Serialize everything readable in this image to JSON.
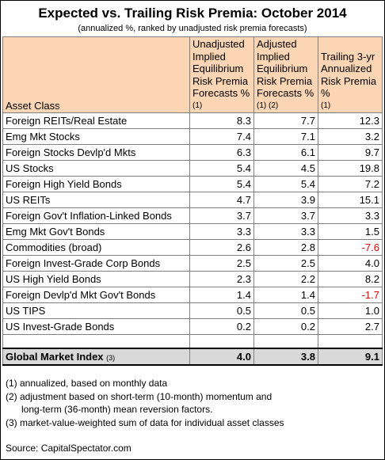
{
  "header": {
    "title": "Expected vs. Trailing Risk Premia: October 2014",
    "subtitle": "(annualized %, ranked by unadjusted risk premia forecasts)"
  },
  "table": {
    "columns": [
      {
        "label": "Asset Class",
        "note": null
      },
      {
        "label": "Unadjusted Implied Equilibrium Risk Premia Forecasts %",
        "note": "(1)"
      },
      {
        "label": "Adjusted Implied Equilibrium Risk Premia Forecasts %",
        "note": "(1) (2)"
      },
      {
        "label": "Trailing 3-yr Annualized Risk Premia %",
        "note": "(1)"
      }
    ],
    "rows": [
      [
        "Foreign REITs/Real Estate",
        "8.3",
        "7.7",
        "12.3"
      ],
      [
        "Emg Mkt Stocks",
        "7.4",
        "7.1",
        "3.2"
      ],
      [
        "Foreign Stocks Devlp'd Mkts",
        "6.3",
        "6.1",
        "9.7"
      ],
      [
        "US Stocks",
        "5.4",
        "4.5",
        "19.8"
      ],
      [
        "Foreign High Yield Bonds",
        "5.4",
        "5.4",
        "7.2"
      ],
      [
        "US REITs",
        "4.7",
        "3.9",
        "15.1"
      ],
      [
        "Foreign Gov't Inflation-Linked Bonds",
        "3.7",
        "3.7",
        "3.3"
      ],
      [
        "Emg Mkt Gov't Bonds",
        "3.3",
        "3.3",
        "1.5"
      ],
      [
        "Commodities (broad)",
        "2.6",
        "2.8",
        "-7.6"
      ],
      [
        "Foreign Invest-Grade Corp Bonds",
        "2.5",
        "2.5",
        "4.0"
      ],
      [
        "US High Yield Bonds",
        "2.3",
        "2.2",
        "8.2"
      ],
      [
        "Foreign Devlp'd Mkt Gov't Bonds",
        "1.4",
        "1.4",
        "-1.7"
      ],
      [
        "US TIPS",
        "0.5",
        "0.5",
        "1.0"
      ],
      [
        "US Invest-Grade Bonds",
        "0.2",
        "0.2",
        "2.7"
      ]
    ],
    "total": {
      "label": "Global Market Index",
      "note": "(3)",
      "values": [
        "4.0",
        "3.8",
        "9.1"
      ]
    }
  },
  "notes": [
    "(1) annualized, based on monthly data",
    "(2) adjustment based on short-term (10-month) momentum and",
    "long-term (36-month) mean reversion factors.",
    "(3) market-value-weighted sum of data for individual asset classes"
  ],
  "source": "Source:  CapitalSpectator.com"
}
